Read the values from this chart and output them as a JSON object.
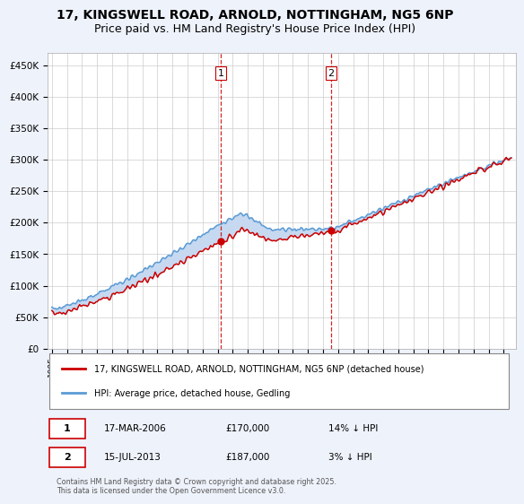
{
  "title_line1": "17, KINGSWELL ROAD, ARNOLD, NOTTINGHAM, NG5 6NP",
  "title_line2": "Price paid vs. HM Land Registry's House Price Index (HPI)",
  "ylim": [
    0,
    470000
  ],
  "yticks": [
    0,
    50000,
    100000,
    150000,
    200000,
    250000,
    300000,
    350000,
    400000,
    450000
  ],
  "ytick_labels": [
    "£0",
    "£50K",
    "£100K",
    "£150K",
    "£200K",
    "£250K",
    "£300K",
    "£350K",
    "£400K",
    "£450K"
  ],
  "hpi_color": "#5b9bd5",
  "price_color": "#cc0000",
  "sale1_date_num": 2006.21,
  "sale1_price": 170000,
  "sale2_date_num": 2013.54,
  "sale2_price": 187000,
  "legend_line1": "17, KINGSWELL ROAD, ARNOLD, NOTTINGHAM, NG5 6NP (detached house)",
  "legend_line2": "HPI: Average price, detached house, Gedling",
  "annotation1_date": "17-MAR-2006",
  "annotation1_price": "£170,000",
  "annotation1_hpi": "14% ↓ HPI",
  "annotation2_date": "15-JUL-2013",
  "annotation2_price": "£187,000",
  "annotation2_hpi": "3% ↓ HPI",
  "copyright_text": "Contains HM Land Registry data © Crown copyright and database right 2025.\nThis data is licensed under the Open Government Licence v3.0.",
  "background_color": "#eef2fb",
  "plot_bg_color": "#ffffff",
  "dashed_vline_color": "#cc0000",
  "grid_color": "#cccccc",
  "shade_color": "#c6d9f0",
  "title_fontsize": 10,
  "subtitle_fontsize": 9,
  "xmin": 1994.7,
  "xmax": 2025.8
}
